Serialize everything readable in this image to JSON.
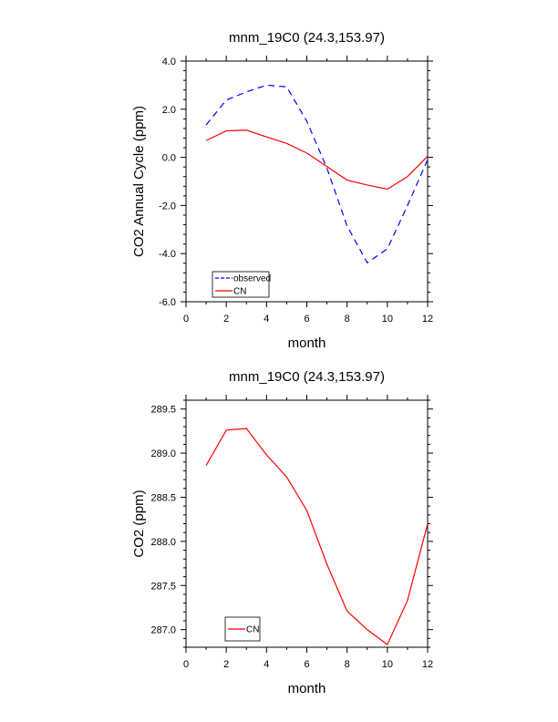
{
  "chart_data": [
    {
      "type": "line",
      "title": "mnm_19C0 (24.3,153.97)",
      "xlabel": "month",
      "ylabel": "CO2 Annual Cycle (ppm)",
      "xlim": [
        0,
        12
      ],
      "ylim": [
        -6.0,
        4.0
      ],
      "xticks": [
        0,
        2,
        4,
        6,
        8,
        10,
        12
      ],
      "yticks": [
        -6.0,
        -4.0,
        -2.0,
        0.0,
        2.0,
        4.0
      ],
      "xtick_labels": [
        "0",
        "2",
        "4",
        "6",
        "8",
        "10",
        "12"
      ],
      "ytick_labels": [
        "-6.0",
        "-4.0",
        "-2.0",
        "0.0",
        "2.0",
        "4.0"
      ],
      "x": [
        1,
        2,
        3,
        4,
        5,
        6,
        7,
        8,
        9,
        10,
        11,
        12
      ],
      "grid": false,
      "legend_position": "bottom-left",
      "series": [
        {
          "name": "observed",
          "color": "#0000ff",
          "dash": "dashed",
          "values": [
            1.35,
            2.38,
            2.72,
            3.0,
            2.93,
            1.5,
            -0.45,
            -2.85,
            -4.38,
            -3.8,
            -2.0,
            -0.1
          ]
        },
        {
          "name": "CN",
          "color": "#ff0000",
          "dash": "solid",
          "values": [
            0.7,
            1.1,
            1.13,
            0.85,
            0.58,
            0.18,
            -0.38,
            -0.95,
            -1.15,
            -1.32,
            -0.8,
            0.05
          ]
        }
      ]
    },
    {
      "type": "line",
      "title": "mnm_19C0 (24.3,153.97)",
      "xlabel": "month",
      "ylabel": "CO2 (ppm)",
      "xlim": [
        0,
        12
      ],
      "ylim": [
        286.8,
        289.6
      ],
      "xticks": [
        0,
        2,
        4,
        6,
        8,
        10,
        12
      ],
      "yticks": [
        287.0,
        287.5,
        288.0,
        288.5,
        289.0,
        289.5
      ],
      "xtick_labels": [
        "0",
        "2",
        "4",
        "6",
        "8",
        "10",
        "12"
      ],
      "ytick_labels": [
        "287.0",
        "287.5",
        "288.0",
        "288.5",
        "289.0",
        "289.5"
      ],
      "x": [
        1,
        2,
        3,
        4,
        5,
        6,
        7,
        8,
        9,
        10,
        11,
        12
      ],
      "grid": false,
      "legend_position": "bottom-left",
      "series": [
        {
          "name": "CN",
          "color": "#ff0000",
          "dash": "solid",
          "values": [
            288.86,
            289.26,
            289.28,
            288.98,
            288.73,
            288.35,
            287.74,
            287.21,
            287.0,
            286.83,
            287.33,
            288.2
          ]
        }
      ]
    }
  ]
}
